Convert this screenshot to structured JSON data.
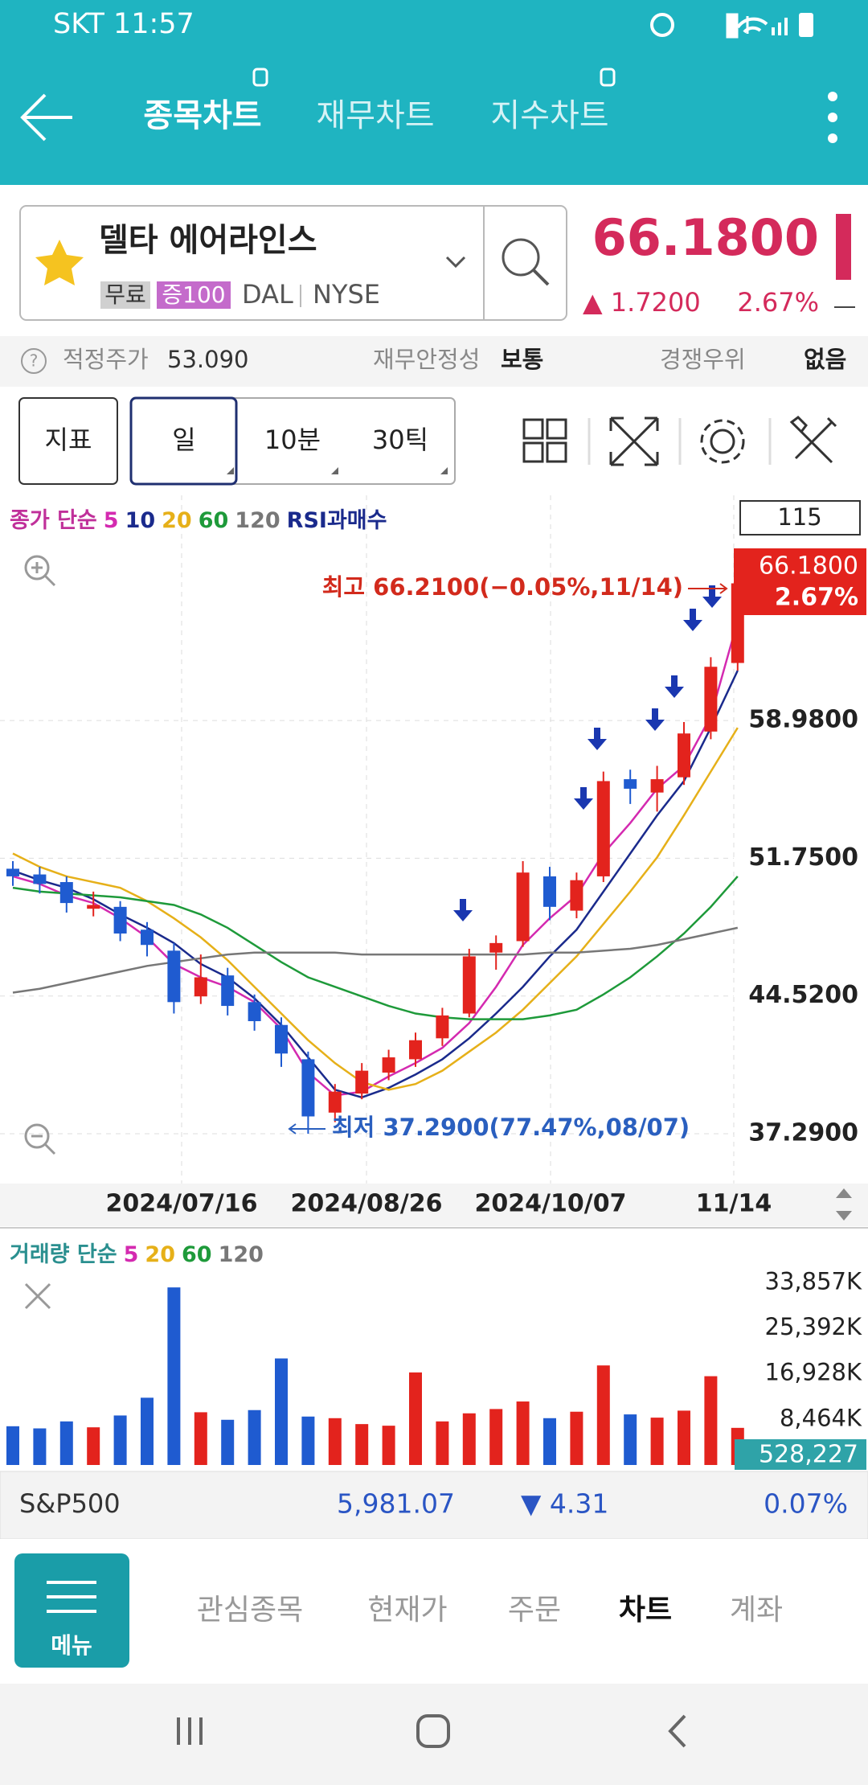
{
  "status_bar": {
    "carrier_time": "SKT 11:57"
  },
  "header": {
    "tabs": [
      "종목차트",
      "재무차트",
      "지수차트"
    ]
  },
  "stock": {
    "name": "델타 에어라인스",
    "tags": [
      "무료",
      "증100"
    ],
    "ticker": "DAL",
    "exchange": "NYSE",
    "price": "66.1800",
    "change": "▲ 1.7200",
    "change_pct": "2.67%"
  },
  "info_row": [
    {
      "label": "적정주가",
      "value": "53.090"
    },
    {
      "label": "재무안정성",
      "value": "보통"
    },
    {
      "label": "경쟁우위",
      "value": "없음"
    }
  ],
  "toolbar": [
    "지표",
    "일",
    "10분",
    "30틱"
  ],
  "chart_data": [
    {
      "type": "candlestick",
      "legend_title": "종가 단순",
      "legend_extra": "RSI과매수",
      "candle_count": "115",
      "last_price_tag": [
        "66.1800",
        "2.67%"
      ],
      "annotations": {
        "high": "최고 66.2100(−0.05%,11/14)",
        "low": "최저 37.2900(77.47%,08/07)"
      },
      "x_labels": [
        "2024/07/16",
        "2024/08/26",
        "2024/10/07",
        "11/14"
      ],
      "up_color": "#e3231d",
      "down_color": "#1f5bd0",
      "grid": true,
      "categories": [
        null,
        null,
        null,
        null,
        null,
        null,
        null,
        null,
        null,
        null,
        null,
        null,
        null,
        null,
        null,
        null,
        null,
        null,
        null,
        null,
        null,
        null,
        null,
        null,
        null,
        null,
        null,
        null
      ],
      "open": [
        51.2,
        50.9,
        50.5,
        49.1,
        49.2,
        48.0,
        46.9,
        44.5,
        45.6,
        44.2,
        43.0,
        41.2,
        38.4,
        39.4,
        40.5,
        41.2,
        42.3,
        43.6,
        46.8,
        47.4,
        50.8,
        49.0,
        50.8,
        55.9,
        55.2,
        56.0,
        58.4,
        62.0
      ],
      "high": [
        51.6,
        51.3,
        50.8,
        50.0,
        49.5,
        48.4,
        47.3,
        46.7,
        46.0,
        44.6,
        43.4,
        41.6,
        39.9,
        41.0,
        41.7,
        42.6,
        43.9,
        47.0,
        47.7,
        51.6,
        51.3,
        51.0,
        56.3,
        56.4,
        56.6,
        58.9,
        62.3,
        66.21
      ],
      "low": [
        50.3,
        49.9,
        48.9,
        48.7,
        47.4,
        46.6,
        43.6,
        44.1,
        43.5,
        42.7,
        40.8,
        37.29,
        37.9,
        39.1,
        40.1,
        40.8,
        41.9,
        43.4,
        45.9,
        47.1,
        48.5,
        48.6,
        50.5,
        54.6,
        54.2,
        55.6,
        58.0,
        61.6
      ],
      "close": [
        50.8,
        50.4,
        49.4,
        49.3,
        47.8,
        47.2,
        44.2,
        45.5,
        44.0,
        43.2,
        41.5,
        38.2,
        39.5,
        40.6,
        41.3,
        42.2,
        43.5,
        46.6,
        47.3,
        51.0,
        49.2,
        50.6,
        55.8,
        55.4,
        55.9,
        58.3,
        61.8,
        66.18
      ],
      "series": [
        {
          "name": "5",
          "color": "#d42ab0",
          "values": [
            50.8,
            50.4,
            49.8,
            49.4,
            48.6,
            47.6,
            46.2,
            45.5,
            45.0,
            44.2,
            42.8,
            40.5,
            39.3,
            39.5,
            40.3,
            41.0,
            41.8,
            43.1,
            45.0,
            47.2,
            48.6,
            49.8,
            52.0,
            53.6,
            55.4,
            56.6,
            59.2,
            64.2
          ]
        },
        {
          "name": "10",
          "color": "#1a2a8c",
          "values": [
            51.1,
            50.6,
            50.2,
            49.6,
            48.8,
            48.1,
            47.3,
            46.2,
            45.5,
            44.4,
            43.0,
            41.3,
            39.6,
            39.2,
            39.7,
            40.4,
            41.2,
            42.3,
            43.6,
            45.0,
            46.6,
            48.0,
            50.0,
            52.0,
            54.0,
            55.8,
            58.6,
            61.6
          ]
        },
        {
          "name": "20",
          "color": "#e6b019",
          "values": [
            52.0,
            51.3,
            50.8,
            50.5,
            50.2,
            49.5,
            48.6,
            47.6,
            46.4,
            45.0,
            43.6,
            42.2,
            41.0,
            40.0,
            39.6,
            39.9,
            40.6,
            41.6,
            42.6,
            43.8,
            45.2,
            46.6,
            48.3,
            50.0,
            51.8,
            54.0,
            56.3,
            58.6
          ]
        },
        {
          "name": "60",
          "color": "#1e9a3a",
          "values": [
            50.2,
            50.0,
            49.9,
            49.8,
            49.7,
            49.5,
            49.3,
            48.8,
            48.1,
            47.2,
            46.3,
            45.5,
            45.0,
            44.5,
            44.0,
            43.6,
            43.4,
            43.3,
            43.3,
            43.3,
            43.5,
            43.8,
            44.6,
            45.5,
            46.6,
            47.8,
            49.2,
            50.8
          ]
        },
        {
          "name": "120",
          "color": "#777777",
          "values": [
            44.7,
            44.9,
            45.2,
            45.5,
            45.8,
            46.1,
            46.3,
            46.5,
            46.7,
            46.8,
            46.8,
            46.8,
            46.8,
            46.7,
            46.7,
            46.7,
            46.7,
            46.7,
            46.7,
            46.7,
            46.8,
            46.8,
            46.9,
            47.0,
            47.2,
            47.5,
            47.8,
            48.1
          ]
        }
      ],
      "ylim": [
        34.76,
        70.21
      ],
      "yticks": [
        {
          "value": 37.29,
          "label": "37.2900"
        },
        {
          "value": 44.52,
          "label": "44.5200"
        },
        {
          "value": 51.75,
          "label": "51.7500"
        },
        {
          "value": 58.98,
          "label": "58.9800"
        }
      ]
    },
    {
      "type": "bar",
      "legend_title": "거래량 단순",
      "legend_items": [
        {
          "name": "5",
          "color": "#d42ab0"
        },
        {
          "name": "20",
          "color": "#e6b019"
        },
        {
          "name": "60",
          "color": "#1e9a3a"
        },
        {
          "name": "120",
          "color": "#777777"
        }
      ],
      "current": "528,227",
      "values": [
        7200,
        6800,
        8100,
        7000,
        9200,
        12500,
        33000,
        9800,
        8400,
        10200,
        19800,
        9000,
        8700,
        7600,
        7300,
        17200,
        8100,
        9600,
        10400,
        11800,
        8700,
        9900,
        18500,
        9400,
        8800,
        10100,
        16500,
        6900
      ],
      "ylim": [
        0,
        39000
      ],
      "yticks": [
        {
          "value": 8464,
          "label": "8,464K"
        },
        {
          "value": 16928,
          "label": "16,928K"
        },
        {
          "value": 25392,
          "label": "25,392K"
        },
        {
          "value": 33857,
          "label": "33,857K"
        }
      ]
    }
  ],
  "index_row": {
    "name": "S&P500",
    "value": "5,981.07",
    "change": "▼ 4.31",
    "change_pct": "0.07%"
  },
  "bottom_nav": {
    "menu": "메뉴",
    "items": [
      "관심종목",
      "현재가",
      "주문",
      "차트",
      "계좌"
    ]
  }
}
